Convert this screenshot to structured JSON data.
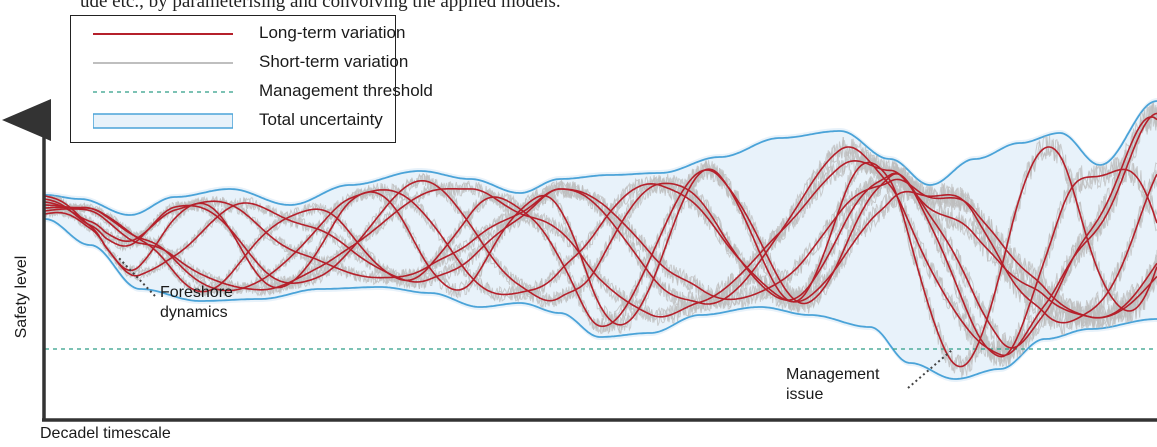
{
  "caption_fragment": "ude etc., by parameterising and convolving the applied models.",
  "legend": {
    "items": [
      {
        "label": "Long-term variation",
        "color": "#b5202b",
        "style": "solid"
      },
      {
        "label": "Short-term variation",
        "color": "#aaaaaa",
        "style": "solid"
      },
      {
        "label": "Management threshold",
        "color": "#2f9e87",
        "style": "dashed"
      },
      {
        "label": "Total uncertainty",
        "color": "#4aa3d8",
        "style": "band"
      }
    ]
  },
  "annotations": {
    "foreshore": [
      "Foreshore",
      "dynamics"
    ],
    "management": [
      "Management",
      "issue"
    ]
  },
  "axes": {
    "y_label": "Safety level",
    "x_label": "Decadel timescale"
  },
  "colors": {
    "long_term": "#b5202b",
    "short_term": "#bdbdbd",
    "threshold": "#2f9e87",
    "uncertainty_edge": "#4aa3d8",
    "uncertainty_fill": "#e8f2fa",
    "axis": "#333333"
  }
}
